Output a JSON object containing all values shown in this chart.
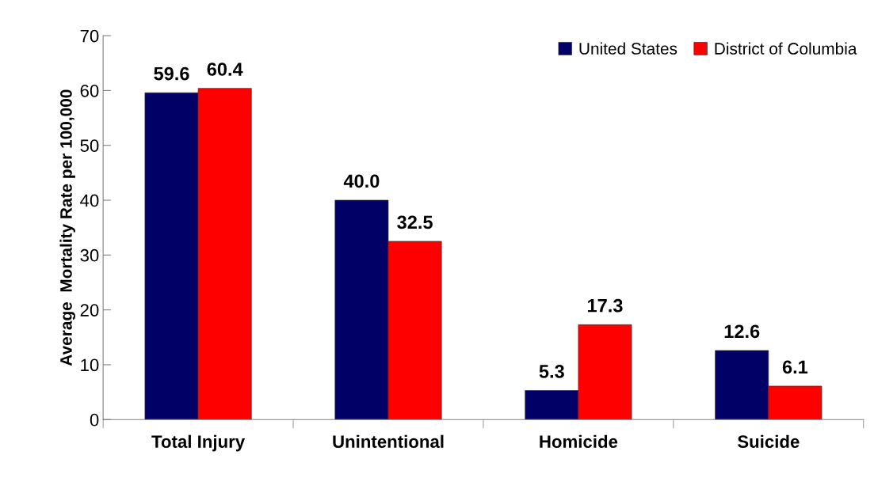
{
  "chart_data": {
    "type": "bar",
    "ylabel": "Average  Mortality Rate per 100,000",
    "categories": [
      "Total Injury",
      "Unintentional",
      "Homicide",
      "Suicide"
    ],
    "series": [
      {
        "name": "United States",
        "color": "#000066",
        "values": [
          59.6,
          40.0,
          5.3,
          12.6
        ],
        "value_labels": [
          "59.6",
          "40.0",
          "5.3",
          "12.6"
        ]
      },
      {
        "name": "District of Columbia",
        "color": "#ff0000",
        "values": [
          60.4,
          32.5,
          17.3,
          6.1
        ],
        "value_labels": [
          "60.4",
          "32.5",
          "17.3",
          "6.1"
        ]
      }
    ],
    "ylim": [
      0,
      70
    ],
    "yticks": [
      0,
      10,
      20,
      30,
      40,
      50,
      60,
      70
    ],
    "legend": "top right",
    "grid": false
  }
}
